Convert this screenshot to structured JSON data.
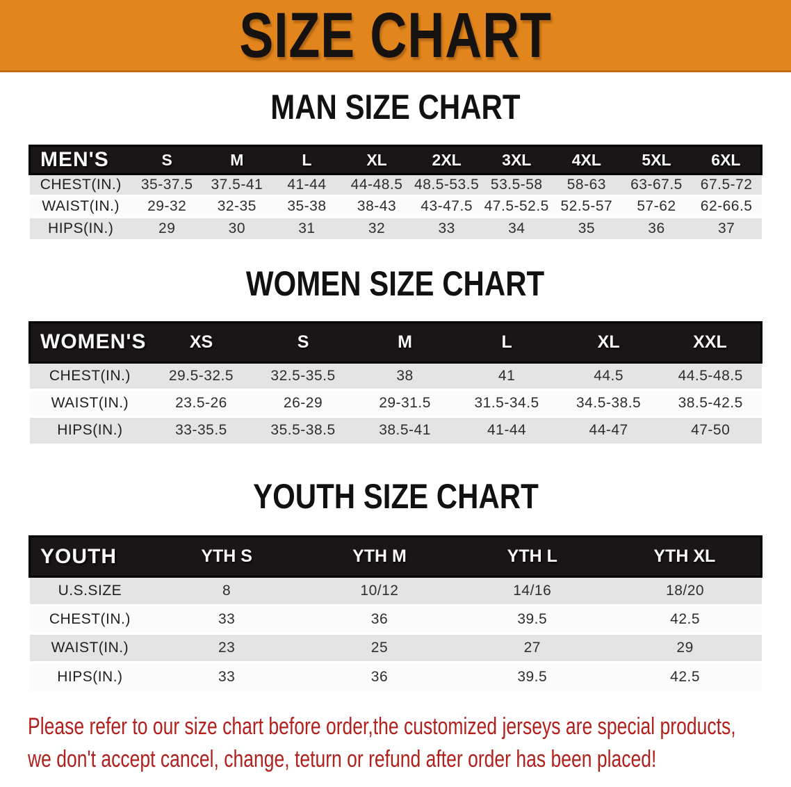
{
  "banner": {
    "title": "SIZE CHART",
    "bg_color": "#E2851D",
    "text_color": "#161210"
  },
  "sections": [
    {
      "heading": "MAN SIZE CHART",
      "table": {
        "header_label": "MEN'S",
        "columns": [
          "S",
          "M",
          "L",
          "XL",
          "2XL",
          "3XL",
          "4XL",
          "5XL",
          "6XL"
        ],
        "rows": [
          {
            "label": "CHEST(IN.)",
            "values": [
              "35-37.5",
              "37.5-41",
              "41-44",
              "44-48.5",
              "48.5-53.5",
              "53.5-58",
              "58-63",
              "63-67.5",
              "67.5-72"
            ]
          },
          {
            "label": "WAIST(IN.)",
            "values": [
              "29-32",
              "32-35",
              "35-38",
              "38-43",
              "43-47.5",
              "47.5-52.5",
              "52.5-57",
              "57-62",
              "62-66.5"
            ]
          },
          {
            "label": "HIPS(IN.)",
            "values": [
              "29",
              "30",
              "31",
              "32",
              "33",
              "34",
              "35",
              "36",
              "37"
            ]
          }
        ]
      }
    },
    {
      "heading": "WOMEN SIZE CHART",
      "table": {
        "header_label": "WOMEN'S",
        "columns": [
          "XS",
          "S",
          "M",
          "L",
          "XL",
          "XXL"
        ],
        "rows": [
          {
            "label": "CHEST(IN.)",
            "values": [
              "29.5-32.5",
              "32.5-35.5",
              "38",
              "41",
              "44.5",
              "44.5-48.5"
            ]
          },
          {
            "label": "WAIST(IN.)",
            "values": [
              "23.5-26",
              "26-29",
              "29-31.5",
              "31.5-34.5",
              "34.5-38.5",
              "38.5-42.5"
            ]
          },
          {
            "label": "HIPS(IN.)",
            "values": [
              "33-35.5",
              "35.5-38.5",
              "38.5-41",
              "41-44",
              "44-47",
              "47-50"
            ]
          }
        ]
      }
    },
    {
      "heading": "YOUTH SIZE CHART",
      "table": {
        "header_label": "YOUTH",
        "columns": [
          "YTH S",
          "YTH M",
          "YTH L",
          "YTH XL"
        ],
        "rows": [
          {
            "label": "U.S.SIZE",
            "values": [
              "8",
              "10/12",
              "14/16",
              "18/20"
            ]
          },
          {
            "label": "CHEST(IN.)",
            "values": [
              "33",
              "36",
              "39.5",
              "42.5"
            ]
          },
          {
            "label": "WAIST(IN.)",
            "values": [
              "23",
              "25",
              "27",
              "29"
            ]
          },
          {
            "label": "HIPS(IN.)",
            "values": [
              "33",
              "36",
              "39.5",
              "42.5"
            ]
          }
        ]
      }
    }
  ],
  "disclaimer": {
    "lines": [
      "Please refer to our size chart before order,the customized jerseys are special products,",
      "we don't accept cancel, change, teturn or refund after order has been placed!"
    ],
    "text_color": "#B1201D"
  },
  "colors": {
    "banner_orange": "#E2851D",
    "table_header_black": "#1A1516",
    "row_gray": "#E5E4E4",
    "row_white": "#FBFBFB",
    "disclaimer_red": "#B1201D"
  }
}
